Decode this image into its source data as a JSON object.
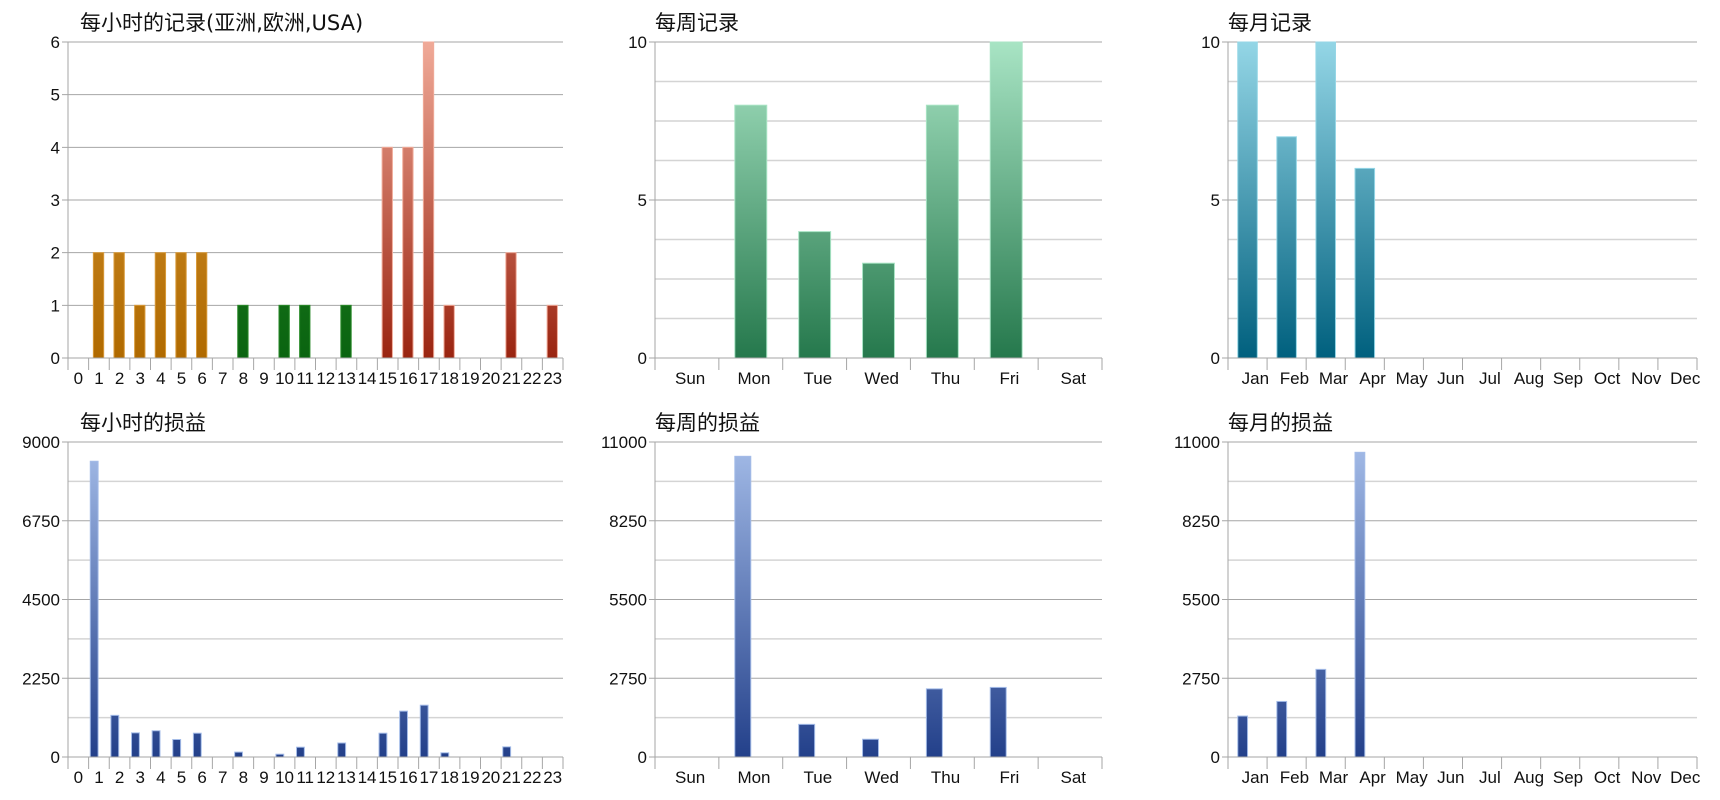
{
  "colors": {
    "asia": [
      "#d89a3a",
      "#b06a00"
    ],
    "europe": [
      "#2a8a2a",
      "#0a6410"
    ],
    "usa": [
      "#f0aa98",
      "#9a2410"
    ],
    "weekly_records": [
      "#a8e4c4",
      "#25784c"
    ],
    "monthly_records": [
      "#94d6e6",
      "#00607e"
    ],
    "pl": [
      "#a4bce8",
      "#23408a"
    ],
    "grid_major": "#a6a6a6",
    "grid_minor": "#d4d4d4"
  },
  "chart_data": [
    {
      "type": "bar",
      "title": "每小时的记录(亚洲,欧洲,USA)",
      "categories": [
        "0",
        "1",
        "2",
        "3",
        "4",
        "5",
        "6",
        "7",
        "8",
        "9",
        "10",
        "11",
        "12",
        "13",
        "14",
        "15",
        "16",
        "17",
        "18",
        "19",
        "20",
        "21",
        "22",
        "23"
      ],
      "values": [
        0,
        2,
        2,
        1,
        2,
        2,
        2,
        0,
        1,
        0,
        1,
        1,
        0,
        1,
        0,
        4,
        4,
        6,
        1,
        0,
        0,
        2,
        0,
        1
      ],
      "bar_colors_by_region": [
        "asia",
        "asia",
        "asia",
        "asia",
        "asia",
        "asia",
        "asia",
        "asia",
        "europe",
        "europe",
        "europe",
        "europe",
        "europe",
        "europe",
        "europe",
        "usa",
        "usa",
        "usa",
        "usa",
        "usa",
        "usa",
        "usa",
        "usa",
        "usa"
      ],
      "ylim": [
        0,
        6
      ],
      "yticks": [
        0,
        1,
        2,
        3,
        4,
        5,
        6
      ],
      "grid": true
    },
    {
      "type": "bar",
      "title": "每周记录",
      "categories": [
        "Sun",
        "Mon",
        "Tue",
        "Wed",
        "Thu",
        "Fri",
        "Sat"
      ],
      "values": [
        0,
        8,
        4,
        3,
        8,
        10,
        0
      ],
      "ylim": [
        0,
        10
      ],
      "yticks": [
        0,
        5,
        10
      ],
      "grid": true
    },
    {
      "type": "bar",
      "title": "每月记录",
      "categories": [
        "Jan",
        "Feb",
        "Mar",
        "Apr",
        "May",
        "Jun",
        "Jul",
        "Aug",
        "Sep",
        "Oct",
        "Nov",
        "Dec"
      ],
      "values": [
        10,
        7,
        10,
        6,
        0,
        0,
        0,
        0,
        0,
        0,
        0,
        0
      ],
      "ylim": [
        0,
        10
      ],
      "yticks": [
        0,
        5,
        10
      ],
      "grid": true
    },
    {
      "type": "bar",
      "title": "每小时的损益",
      "categories": [
        "0",
        "1",
        "2",
        "3",
        "4",
        "5",
        "6",
        "7",
        "8",
        "9",
        "10",
        "11",
        "12",
        "13",
        "14",
        "15",
        "16",
        "17",
        "18",
        "19",
        "20",
        "21",
        "22",
        "23"
      ],
      "values": [
        0,
        8450,
        1190,
        690,
        750,
        500,
        680,
        0,
        140,
        0,
        80,
        280,
        0,
        400,
        0,
        680,
        1310,
        1480,
        120,
        0,
        0,
        290,
        0,
        0
      ],
      "ylim": [
        0,
        9000
      ],
      "yticks": [
        0,
        2250,
        4500,
        6750,
        9000
      ],
      "grid": true
    },
    {
      "type": "bar",
      "title": "每周的损益",
      "categories": [
        "Sun",
        "Mon",
        "Tue",
        "Wed",
        "Thu",
        "Fri",
        "Sat"
      ],
      "values": [
        0,
        10500,
        1140,
        620,
        2380,
        2430,
        0
      ],
      "ylim": [
        0,
        11000
      ],
      "yticks": [
        0,
        2750,
        5500,
        8250,
        11000
      ],
      "grid": true
    },
    {
      "type": "bar",
      "title": "每月的损益",
      "categories": [
        "Jan",
        "Feb",
        "Mar",
        "Apr",
        "May",
        "Jun",
        "Jul",
        "Aug",
        "Sep",
        "Oct",
        "Nov",
        "Dec"
      ],
      "values": [
        1430,
        1940,
        3060,
        10640,
        0,
        0,
        0,
        0,
        0,
        0,
        0,
        0
      ],
      "ylim": [
        0,
        11000
      ],
      "yticks": [
        0,
        2750,
        5500,
        8250,
        11000
      ],
      "grid": true
    }
  ]
}
